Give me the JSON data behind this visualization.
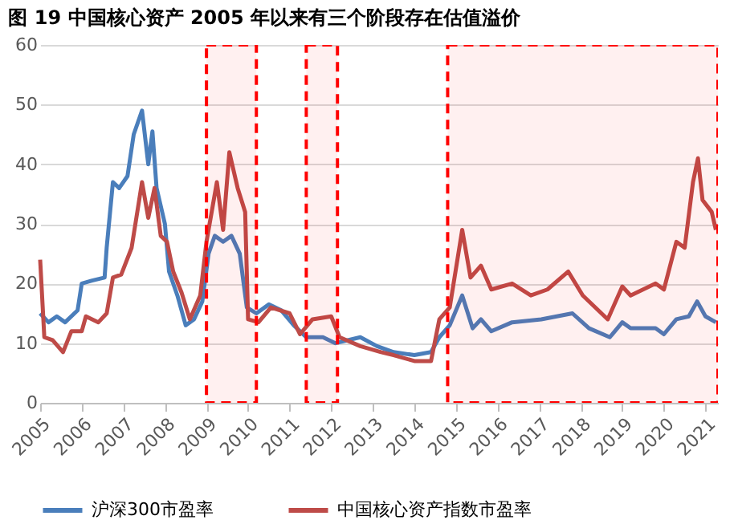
{
  "chart_data": {
    "type": "line",
    "title": "图 19 中国核心资产 2005 年以来有三个阶段存在估值溢价",
    "xlim": [
      2005,
      2021.3
    ],
    "xticks": [
      2005,
      2006,
      2007,
      2008,
      2009,
      2010,
      2011,
      2012,
      2013,
      2014,
      2015,
      2016,
      2017,
      2018,
      2019,
      2020,
      2021
    ],
    "ylim": [
      0,
      60
    ],
    "yticks": [
      0,
      10,
      20,
      30,
      40,
      50,
      60
    ],
    "grid": "y",
    "legend": "bottom",
    "line_style": "solid",
    "marker": "none",
    "bands": [
      {
        "axis": "x",
        "from": 2009.0,
        "to": 2010.2,
        "color": "#ff0000"
      },
      {
        "axis": "x",
        "from": 2011.4,
        "to": 2012.15,
        "color": "#ff0000"
      },
      {
        "axis": "x",
        "from": 2014.8,
        "to": 2021.3,
        "color": "#ff0000"
      }
    ],
    "series": [
      {
        "name": "沪深300市盈率",
        "color": "#4a7ebb",
        "x": [
          2005.0,
          2005.2,
          2005.4,
          2005.6,
          2005.9,
          2006.0,
          2006.25,
          2006.55,
          2006.6,
          2006.75,
          2006.9,
          2007.1,
          2007.25,
          2007.45,
          2007.6,
          2007.7,
          2007.8,
          2008.0,
          2008.1,
          2008.3,
          2008.5,
          2008.7,
          2008.9,
          2009.05,
          2009.2,
          2009.4,
          2009.6,
          2009.8,
          2009.97,
          2010.2,
          2010.5,
          2010.8,
          2011.1,
          2011.4,
          2011.8,
          2012.1,
          2012.7,
          2013.1,
          2013.5,
          2014.0,
          2014.4,
          2014.6,
          2014.85,
          2015.15,
          2015.4,
          2015.6,
          2015.85,
          2016.35,
          2017.05,
          2017.8,
          2018.2,
          2018.7,
          2019.0,
          2019.2,
          2019.8,
          2020.0,
          2020.3,
          2020.6,
          2020.8,
          2021.0,
          2021.25
        ],
        "values": [
          15,
          13.5,
          14.5,
          13.5,
          15.5,
          20,
          20.5,
          21,
          26,
          37,
          36,
          38,
          45,
          49,
          40,
          45.5,
          36,
          30,
          22,
          18,
          13,
          14,
          17,
          25,
          28,
          27,
          28,
          25,
          16,
          15,
          16.5,
          15.5,
          13,
          11,
          11,
          10,
          11,
          9.5,
          8.5,
          8,
          8.5,
          11,
          13,
          18,
          12.5,
          14,
          12,
          13.5,
          14,
          15,
          12.5,
          11,
          13.5,
          12.5,
          12.5,
          11.5,
          14,
          14.5,
          17,
          14.5,
          13.5
        ]
      },
      {
        "name": "中国核心资产指数市盈率",
        "color": "#be4b48",
        "x": [
          2005.0,
          2005.1,
          2005.3,
          2005.55,
          2005.75,
          2006.0,
          2006.1,
          2006.4,
          2006.6,
          2006.75,
          2006.95,
          2007.2,
          2007.45,
          2007.6,
          2007.75,
          2007.9,
          2008.05,
          2008.2,
          2008.4,
          2008.6,
          2008.85,
          2009.0,
          2009.25,
          2009.4,
          2009.55,
          2009.75,
          2009.93,
          2010.0,
          2010.25,
          2010.55,
          2011.0,
          2011.25,
          2011.55,
          2012.0,
          2012.2,
          2012.7,
          2013.2,
          2013.5,
          2014.0,
          2014.4,
          2014.6,
          2014.85,
          2015.15,
          2015.35,
          2015.6,
          2015.85,
          2016.35,
          2016.8,
          2017.2,
          2017.7,
          2018.05,
          2018.65,
          2019.0,
          2019.2,
          2019.8,
          2020.0,
          2020.3,
          2020.5,
          2020.7,
          2020.82,
          2020.93,
          2021.15,
          2021.25
        ],
        "values": [
          24,
          11,
          10.5,
          8.5,
          12,
          12,
          14.5,
          13.5,
          15,
          21,
          21.5,
          26,
          37,
          31,
          36,
          28,
          27,
          22,
          18.5,
          14,
          18,
          27,
          37,
          29,
          42,
          36,
          32,
          14,
          13.5,
          16,
          15,
          11.5,
          14,
          14.5,
          11,
          9.5,
          8.5,
          8,
          7,
          7,
          14,
          16,
          29,
          21,
          23,
          19,
          20,
          18,
          19,
          22,
          18,
          14,
          19.5,
          18,
          20,
          19,
          27,
          26,
          37,
          41,
          34,
          32,
          29
        ]
      }
    ]
  }
}
